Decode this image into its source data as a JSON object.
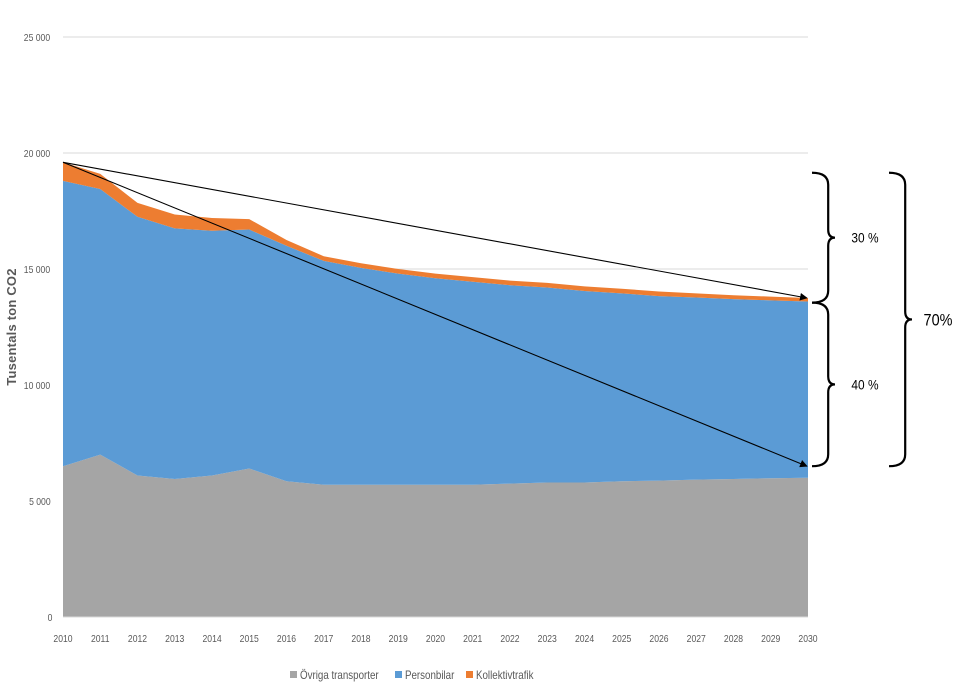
{
  "chart_data": {
    "type": "area",
    "stacked": true,
    "title": "",
    "xlabel": "",
    "ylabel": "Tusentals ton CO2",
    "ylim": [
      0,
      25000
    ],
    "yticks": [
      0,
      5000,
      10000,
      15000,
      20000,
      25000
    ],
    "ytick_labels": [
      "0",
      "5 000",
      "10 000",
      "15 000",
      "20 000",
      "25 000"
    ],
    "grid": true,
    "legend_position": "bottom",
    "x": [
      "2010",
      "2011",
      "2012",
      "2013",
      "2014",
      "2015",
      "2016",
      "2017",
      "2018",
      "2019",
      "2020",
      "2021",
      "2022",
      "2023",
      "2024",
      "2025",
      "2026",
      "2027",
      "2028",
      "2029",
      "2030"
    ],
    "series": [
      {
        "name": "Övriga transporter",
        "color": "#a5a5a5",
        "values": [
          6500,
          7000,
          6100,
          5950,
          6100,
          6400,
          5850,
          5700,
          5700,
          5700,
          5700,
          5700,
          5750,
          5800,
          5800,
          5850,
          5880,
          5920,
          5950,
          5980,
          6000
        ]
      },
      {
        "name": "Personbilar",
        "color": "#5b9bd5",
        "values": [
          12300,
          11450,
          11150,
          10800,
          10550,
          10300,
          10150,
          9650,
          9350,
          9100,
          8900,
          8750,
          8550,
          8400,
          8250,
          8100,
          7950,
          7850,
          7750,
          7670,
          7600
        ]
      },
      {
        "name": "Kollektivtrafik",
        "color": "#ed7d31",
        "values": [
          800,
          650,
          600,
          600,
          550,
          450,
          250,
          200,
          200,
          200,
          200,
          200,
          200,
          200,
          200,
          200,
          200,
          180,
          170,
          160,
          150
        ]
      }
    ],
    "annotations": {
      "arrows": [
        {
          "from": [
            "2010",
            19600
          ],
          "to": [
            "2030",
            13750
          ]
        },
        {
          "from": [
            "2010",
            19600
          ],
          "to": [
            "2030",
            6500
          ]
        }
      ],
      "braces": [
        {
          "label": "30 %",
          "y_from": 13550,
          "y_to": 19150
        },
        {
          "label": "40 %",
          "y_from": 6500,
          "y_to": 13550
        },
        {
          "label": "70%",
          "y_from": 6500,
          "y_to": 19150
        }
      ]
    }
  }
}
